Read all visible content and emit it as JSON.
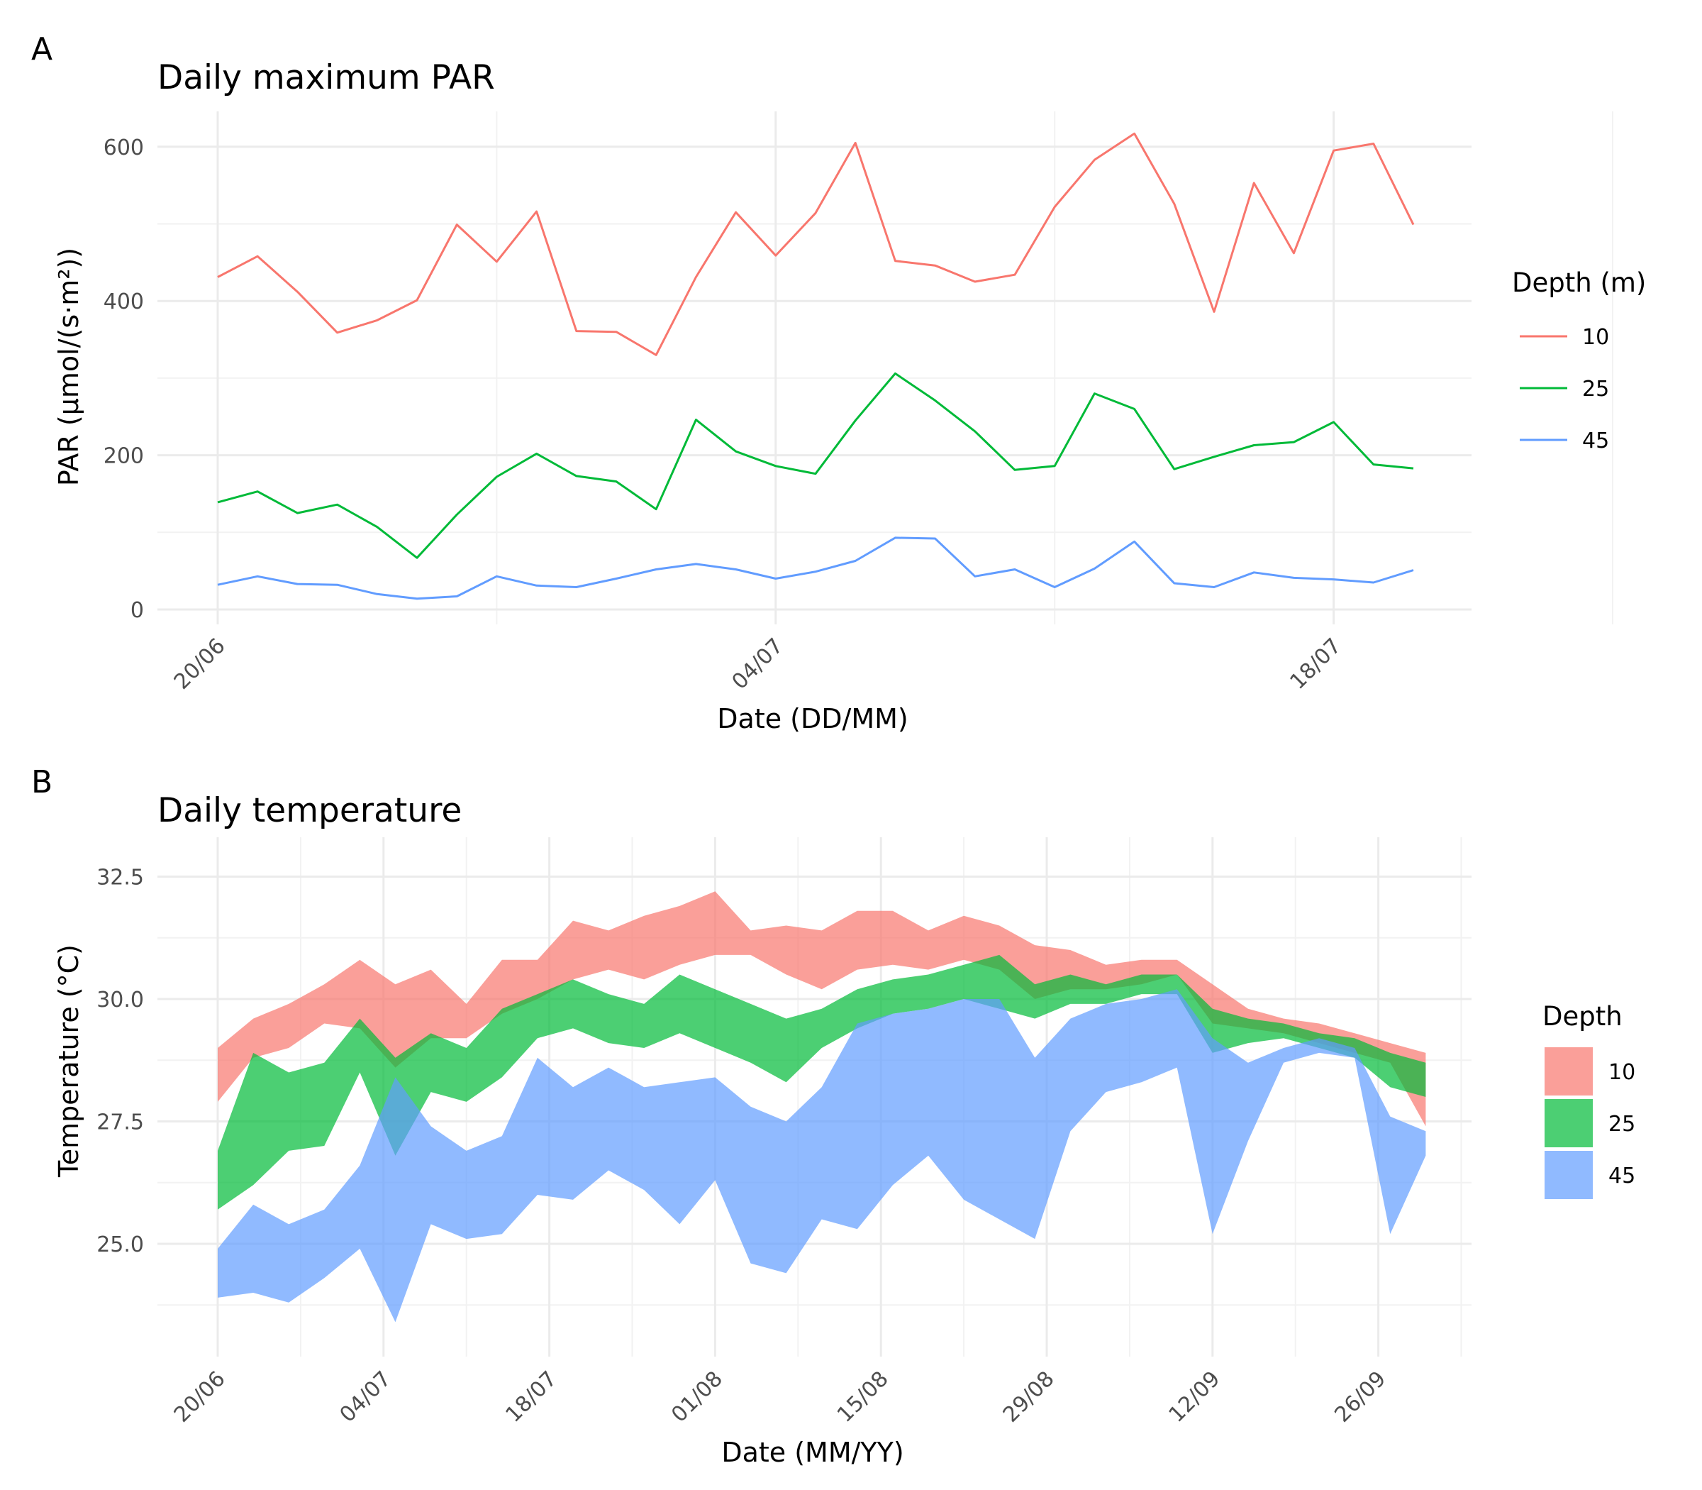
{
  "chart_data": [
    {
      "panel": "A",
      "type": "line",
      "title": "Daily maximum PAR",
      "xlabel": "Date (DD/MM)",
      "ylabel": "PAR (µmol/(s·m²))",
      "x_tick_labels": [
        "20/06",
        "04/07",
        "18/07"
      ],
      "y_tick_labels": [
        "0",
        "200",
        "400",
        "600"
      ],
      "ylim": [
        0,
        650
      ],
      "grid": true,
      "legend": {
        "title": "Depth (m)",
        "placement": "right"
      },
      "x": [
        "2023-06-20",
        "2023-06-21",
        "2023-06-22",
        "2023-06-23",
        "2023-06-24",
        "2023-06-25",
        "2023-06-26",
        "2023-06-27",
        "2023-06-28",
        "2023-06-29",
        "2023-06-30",
        "2023-07-01",
        "2023-07-02",
        "2023-07-03",
        "2023-07-04",
        "2023-07-05",
        "2023-07-06",
        "2023-07-07",
        "2023-07-08",
        "2023-07-09",
        "2023-07-10",
        "2023-07-11",
        "2023-07-12",
        "2023-07-13",
        "2023-07-14",
        "2023-07-15",
        "2023-07-16",
        "2023-07-17",
        "2023-07-18",
        "2023-07-19",
        "2023-07-20"
      ],
      "series": [
        {
          "name": "10",
          "color": "#F8766D",
          "values": [
            431,
            458,
            412,
            359,
            375,
            401,
            499,
            451,
            516,
            361,
            360,
            330,
            431,
            515,
            459,
            514,
            605,
            452,
            446,
            425,
            434,
            522,
            583,
            617,
            526,
            386,
            553,
            462,
            595,
            604,
            499
          ]
        },
        {
          "name": "25",
          "color": "#00BA38",
          "values": [
            139,
            153,
            125,
            136,
            107,
            67,
            123,
            172,
            202,
            173,
            166,
            130,
            246,
            205,
            186,
            176,
            245,
            306,
            271,
            231,
            181,
            186,
            280,
            260,
            182,
            198,
            213,
            217,
            243,
            188,
            183
          ]
        },
        {
          "name": "45",
          "color": "#619CFF",
          "values": [
            32,
            43,
            33,
            32,
            20,
            14,
            17,
            43,
            31,
            29,
            40,
            52,
            59,
            52,
            40,
            49,
            63,
            93,
            92,
            43,
            52,
            29,
            53,
            88,
            34,
            29,
            48,
            41,
            39,
            35,
            51
          ]
        }
      ]
    },
    {
      "panel": "B",
      "type": "area",
      "title": "Daily temperature",
      "xlabel": "Date (MM/YY)",
      "ylabel": "Temperature (°C)",
      "x_tick_labels": [
        "20/06",
        "04/07",
        "18/07",
        "01/08",
        "15/08",
        "29/08",
        "12/09",
        "26/09"
      ],
      "y_tick_labels": [
        "25.0",
        "27.5",
        "30.0",
        "32.5"
      ],
      "ylim": [
        22.9,
        33.0
      ],
      "x_range": [
        "2023-06-20",
        "2023-10-01"
      ],
      "grid": true,
      "legend": {
        "title": "Depth",
        "placement": "right"
      },
      "series": [
        {
          "name": "10",
          "color": "#F8766D",
          "points": [
            [
              "2023-06-20",
              27.9,
              29.0
            ],
            [
              "2023-06-23",
              28.8,
              29.6
            ],
            [
              "2023-06-26",
              29.0,
              29.9
            ],
            [
              "2023-06-29",
              29.5,
              30.3
            ],
            [
              "2023-07-02",
              29.4,
              30.8
            ],
            [
              "2023-07-05",
              28.6,
              30.3
            ],
            [
              "2023-07-08",
              29.2,
              30.6
            ],
            [
              "2023-07-11",
              29.2,
              29.9
            ],
            [
              "2023-07-14",
              29.7,
              30.8
            ],
            [
              "2023-07-17",
              30.0,
              30.8
            ],
            [
              "2023-07-20",
              30.4,
              31.6
            ],
            [
              "2023-07-23",
              30.6,
              31.4
            ],
            [
              "2023-07-26",
              30.4,
              31.7
            ],
            [
              "2023-07-29",
              30.7,
              31.9
            ],
            [
              "2023-08-01",
              30.9,
              32.2
            ],
            [
              "2023-08-04",
              30.9,
              31.4
            ],
            [
              "2023-08-07",
              30.5,
              31.5
            ],
            [
              "2023-08-10",
              30.2,
              31.4
            ],
            [
              "2023-08-13",
              30.6,
              31.8
            ],
            [
              "2023-08-16",
              30.7,
              31.8
            ],
            [
              "2023-08-19",
              30.6,
              31.4
            ],
            [
              "2023-08-22",
              30.8,
              31.7
            ],
            [
              "2023-08-25",
              30.6,
              31.5
            ],
            [
              "2023-08-28",
              30.0,
              31.1
            ],
            [
              "2023-08-31",
              30.2,
              31.0
            ],
            [
              "2023-09-03",
              30.2,
              30.7
            ],
            [
              "2023-09-06",
              30.3,
              30.8
            ],
            [
              "2023-09-09",
              30.5,
              30.8
            ],
            [
              "2023-09-12",
              29.5,
              30.3
            ],
            [
              "2023-09-15",
              29.4,
              29.8
            ],
            [
              "2023-09-18",
              29.3,
              29.6
            ],
            [
              "2023-09-21",
              29.1,
              29.5
            ],
            [
              "2023-09-24",
              28.9,
              29.3
            ],
            [
              "2023-09-27",
              28.7,
              29.1
            ],
            [
              "2023-09-30",
              27.4,
              28.9
            ]
          ]
        },
        {
          "name": "25",
          "color": "#00BA38",
          "points": [
            [
              "2023-06-20",
              25.7,
              26.9
            ],
            [
              "2023-06-23",
              26.2,
              28.9
            ],
            [
              "2023-06-26",
              26.9,
              28.5
            ],
            [
              "2023-06-29",
              27.0,
              28.7
            ],
            [
              "2023-07-02",
              28.5,
              29.6
            ],
            [
              "2023-07-05",
              26.8,
              28.8
            ],
            [
              "2023-07-08",
              28.1,
              29.3
            ],
            [
              "2023-07-11",
              27.9,
              29.0
            ],
            [
              "2023-07-14",
              28.4,
              29.8
            ],
            [
              "2023-07-17",
              29.2,
              30.1
            ],
            [
              "2023-07-20",
              29.4,
              30.4
            ],
            [
              "2023-07-23",
              29.1,
              30.1
            ],
            [
              "2023-07-26",
              29.0,
              29.9
            ],
            [
              "2023-07-29",
              29.3,
              30.5
            ],
            [
              "2023-08-01",
              29.0,
              30.2
            ],
            [
              "2023-08-04",
              28.7,
              29.9
            ],
            [
              "2023-08-07",
              28.3,
              29.6
            ],
            [
              "2023-08-10",
              29.0,
              29.8
            ],
            [
              "2023-08-13",
              29.4,
              30.2
            ],
            [
              "2023-08-16",
              29.7,
              30.4
            ],
            [
              "2023-08-19",
              29.8,
              30.5
            ],
            [
              "2023-08-22",
              30.0,
              30.7
            ],
            [
              "2023-08-25",
              29.8,
              30.9
            ],
            [
              "2023-08-28",
              29.6,
              30.3
            ],
            [
              "2023-08-31",
              29.9,
              30.5
            ],
            [
              "2023-09-03",
              29.9,
              30.3
            ],
            [
              "2023-09-06",
              30.1,
              30.5
            ],
            [
              "2023-09-09",
              30.1,
              30.5
            ],
            [
              "2023-09-12",
              28.9,
              29.8
            ],
            [
              "2023-09-15",
              29.1,
              29.6
            ],
            [
              "2023-09-18",
              29.2,
              29.5
            ],
            [
              "2023-09-21",
              29.0,
              29.3
            ],
            [
              "2023-09-24",
              28.8,
              29.2
            ],
            [
              "2023-09-27",
              28.2,
              28.9
            ],
            [
              "2023-09-30",
              28.0,
              28.7
            ]
          ]
        },
        {
          "name": "45",
          "color": "#619CFF",
          "points": [
            [
              "2023-06-20",
              23.9,
              24.9
            ],
            [
              "2023-06-23",
              24.0,
              25.8
            ],
            [
              "2023-06-26",
              23.8,
              25.4
            ],
            [
              "2023-06-29",
              24.3,
              25.7
            ],
            [
              "2023-07-02",
              24.9,
              26.6
            ],
            [
              "2023-07-05",
              23.4,
              28.4
            ],
            [
              "2023-07-08",
              25.4,
              27.4
            ],
            [
              "2023-07-11",
              25.1,
              26.9
            ],
            [
              "2023-07-14",
              25.2,
              27.2
            ],
            [
              "2023-07-17",
              26.0,
              28.8
            ],
            [
              "2023-07-20",
              25.9,
              28.2
            ],
            [
              "2023-07-23",
              26.5,
              28.6
            ],
            [
              "2023-07-26",
              26.1,
              28.2
            ],
            [
              "2023-07-29",
              25.4,
              28.3
            ],
            [
              "2023-08-01",
              26.3,
              28.4
            ],
            [
              "2023-08-04",
              24.6,
              27.8
            ],
            [
              "2023-08-07",
              24.4,
              27.5
            ],
            [
              "2023-08-10",
              25.5,
              28.2
            ],
            [
              "2023-08-13",
              25.3,
              29.5
            ],
            [
              "2023-08-16",
              26.2,
              29.7
            ],
            [
              "2023-08-19",
              26.8,
              29.8
            ],
            [
              "2023-08-22",
              25.9,
              30.0
            ],
            [
              "2023-08-25",
              25.5,
              30.0
            ],
            [
              "2023-08-28",
              25.1,
              28.8
            ],
            [
              "2023-08-31",
              27.3,
              29.6
            ],
            [
              "2023-09-03",
              28.1,
              29.9
            ],
            [
              "2023-09-06",
              28.3,
              30.0
            ],
            [
              "2023-09-09",
              28.6,
              30.2
            ],
            [
              "2023-09-12",
              25.2,
              29.2
            ],
            [
              "2023-09-15",
              27.1,
              28.7
            ],
            [
              "2023-09-18",
              28.7,
              29.0
            ],
            [
              "2023-09-21",
              28.9,
              29.2
            ],
            [
              "2023-09-24",
              28.8,
              29.0
            ],
            [
              "2023-09-27",
              25.2,
              27.6
            ],
            [
              "2023-09-30",
              26.8,
              27.3
            ]
          ]
        }
      ]
    }
  ]
}
